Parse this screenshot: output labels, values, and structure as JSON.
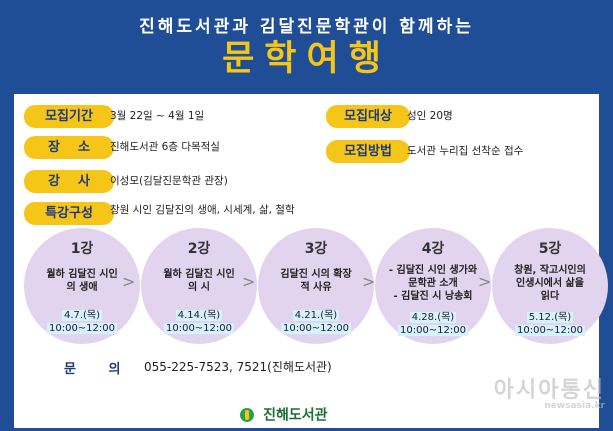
{
  "header": {
    "subtitle": "진해도서관과 김달진문학관이 함께하는",
    "title": "문학여행"
  },
  "info": [
    {
      "label": "모집기간",
      "value": "3월 22일 ~ 4월 1일"
    },
    {
      "label": "모집대상",
      "value": "성인 20명"
    },
    {
      "label": "장    소",
      "value": "진해도서관 6층 다목적실"
    },
    {
      "label": "모집방법",
      "value": "도서관 누리집 선착순 접수"
    },
    {
      "label": "강    사",
      "value": "이성모(김달진문학관 관장)"
    },
    {
      "label": "특강구성",
      "value": "창원 시인 김달진의 생애, 시세계, 삶, 철학"
    }
  ],
  "lectures": [
    {
      "num": "1강",
      "topic": "월하 김달진 시인의 생애",
      "date": "4.7.(목)",
      "time": "10:00~12:00"
    },
    {
      "num": "2강",
      "topic": "월하 김달진 시인의 시",
      "date": "4.14.(목)",
      "time": "10:00~12:00"
    },
    {
      "num": "3강",
      "topic": "김달진 시의 확장적 사유",
      "date": "4.21.(목)",
      "time": "10:00~12:00"
    },
    {
      "num": "4강",
      "topic_lines": [
        "- 김달진 시인 생가와",
        "문학관 소개",
        "- 김달진 시 낭송회"
      ],
      "date": "4.28.(목)",
      "time": "10:00~12:00"
    },
    {
      "num": "5강",
      "topic_lines": [
        "창원, 작고시인의",
        "인생시에서 삶을",
        "읽다"
      ],
      "date": "5.12.(목)",
      "time": "10:00~12:00"
    }
  ],
  "arrow": ">",
  "contact": {
    "label": "문 의",
    "value": "055-225-7523, 7521(진해도서관)"
  },
  "logo": {
    "text": "진해도서관"
  },
  "watermark": {
    "main": "아시아통신",
    "sub": "newsasia.kr"
  },
  "colors": {
    "background": "#1f4e96",
    "label_yellow": "#f5c518",
    "circle_purple": "#e2d3ee",
    "date_highlight": "#d6f1ff"
  }
}
